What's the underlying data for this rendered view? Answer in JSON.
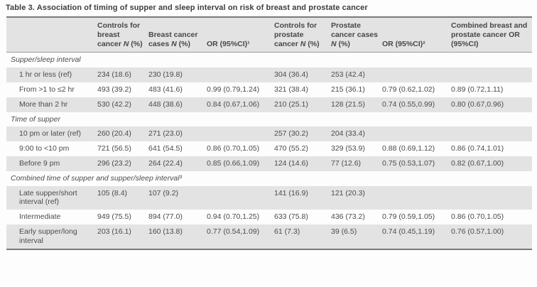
{
  "title": "Table 3. Association of timing of supper and sleep interval on risk of breast and prostate cancer",
  "colors": {
    "stripe_gray": "#e3e3e3",
    "rule_dark": "#7a7a7a",
    "rule_mid": "#9a9a9a",
    "text": "#4c4c4c"
  },
  "table": {
    "columns": [
      "",
      "Controls for breast cancer N (%)",
      "Breast cancer cases N (%)",
      "OR (95%CI)¹",
      "Controls for prostate cancer N (%)",
      "Prostate cancer cases N (%)",
      "OR (95%CI)²",
      "Combined breast and prostate cancer OR (95%CI)"
    ],
    "sections": [
      {
        "header": "Supper/sleep interval",
        "rows": [
          {
            "label": "1 hr or less (ref)",
            "cells": [
              "234 (18.6)",
              "230 (19.8)",
              "",
              "304 (36.4)",
              "253 (42.4)",
              "",
              ""
            ]
          },
          {
            "label": "From >1 to ≤2 hr",
            "cells": [
              "493 (39.2)",
              "483 (41.6)",
              "0.99 (0.79,1.24)",
              "321 (38.4)",
              "215 (36.1)",
              "0.79 (0.62,1.02)",
              "0.89 (0.72,1.11)"
            ]
          },
          {
            "label": "More than 2 hr",
            "cells": [
              "530 (42.2)",
              "448 (38.6)",
              "0.84 (0.67,1.06)",
              "210 (25.1)",
              "128 (21.5)",
              "0.74 (0.55,0.99)",
              "0.80 (0.67,0.96)"
            ]
          }
        ]
      },
      {
        "header": "Time of supper",
        "rows": [
          {
            "label": "10 pm or later (ref)",
            "cells": [
              "260 (20.4)",
              "271 (23.0)",
              "",
              "257 (30.2)",
              "204 (33.4)",
              "",
              ""
            ]
          },
          {
            "label": "9:00 to <10 pm",
            "cells": [
              "721 (56.5)",
              "641 (54.5)",
              "0.86 (0.70,1.05)",
              "470 (55.2)",
              "329 (53.9)",
              "0.88 (0.69,1.12)",
              "0.86 (0.74,1.01)"
            ]
          },
          {
            "label": "Before 9 pm",
            "cells": [
              "296 (23.2)",
              "264 (22.4)",
              "0.85 (0.66,1.09)",
              "124 (14.6)",
              "77 (12.6)",
              "0.75 (0.53,1.07)",
              "0.82 (0.67,1.00)"
            ]
          }
        ]
      },
      {
        "header": "Combined time of supper and supper/sleep interval³",
        "rows": [
          {
            "label": "Late supper/short interval (ref)",
            "cells": [
              "105 (8.4)",
              "107 (9.2)",
              "",
              "141 (16.9)",
              "121 (20.3)",
              "",
              ""
            ]
          },
          {
            "label": "Intermediate",
            "cells": [
              "949 (75.5)",
              "894 (77.0)",
              "0.94 (0.70,1.25)",
              "633 (75.8)",
              "436 (73.2)",
              "0.79 (0.59,1.05)",
              "0.86 (0.70,1.05)"
            ]
          },
          {
            "label": "Early supper/long interval",
            "cells": [
              "203 (16.1)",
              "160 (13.8)",
              "0.77 (0.54,1.09)",
              "61 (7.3)",
              "39 (6.5)",
              "0.74 (0.45,1.19)",
              "0.76 (0.57,1.00)"
            ]
          }
        ]
      }
    ]
  }
}
